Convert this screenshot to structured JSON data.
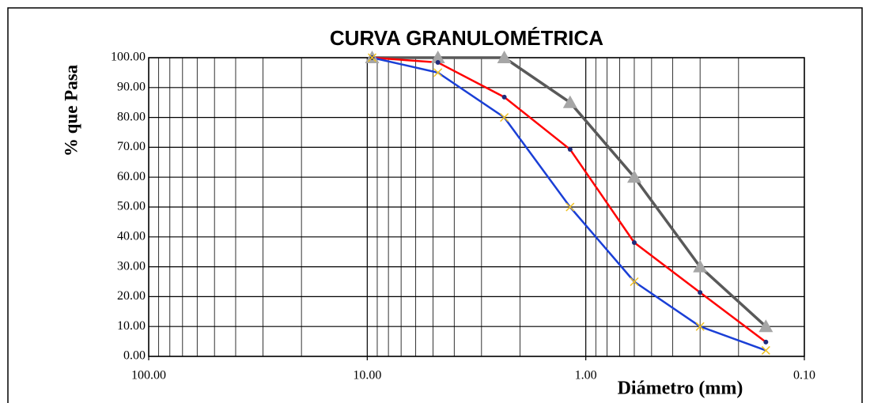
{
  "chart_data": {
    "type": "line",
    "title": "CURVA GRANULOMÉTRICA",
    "y_label": "% que Pasa",
    "x_label": "Diámetro (mm)",
    "x": [
      9.5,
      4.75,
      2.36,
      1.18,
      0.6,
      0.3,
      0.15
    ],
    "series": [
      {
        "color": "#595959",
        "marker": "triangle",
        "marker_color": "#a6a6a6",
        "values": [
          100,
          100,
          100,
          85,
          60,
          30,
          10
        ]
      },
      {
        "color": "#ff0000",
        "marker": "circle",
        "marker_color": "#1f2a7a",
        "values": [
          100,
          98.4,
          86.8,
          69.3,
          38.1,
          21.4,
          4.8
        ]
      },
      {
        "color": "#1a3fd6",
        "marker": "x",
        "marker_color": "#f0c020",
        "values": [
          100,
          95,
          80,
          50,
          25,
          10,
          2
        ]
      }
    ],
    "xlim": [
      100,
      0.1
    ],
    "x_log": true,
    "xticks": [
      {
        "value": 100,
        "label": "100.00"
      },
      {
        "value": 10,
        "label": "10.00"
      },
      {
        "value": 1,
        "label": "1.00"
      },
      {
        "value": 0.1,
        "label": "0.10"
      }
    ],
    "ylim": [
      0,
      100
    ],
    "yticks": [
      {
        "value": 0,
        "label": "0.00"
      },
      {
        "value": 10,
        "label": "10.00"
      },
      {
        "value": 20,
        "label": "20.00"
      },
      {
        "value": 30,
        "label": "30.00"
      },
      {
        "value": 40,
        "label": "40.00"
      },
      {
        "value": 50,
        "label": "50.00"
      },
      {
        "value": 60,
        "label": "60.00"
      },
      {
        "value": 70,
        "label": "70.00"
      },
      {
        "value": 80,
        "label": "80.00"
      },
      {
        "value": 90,
        "label": "90.00"
      },
      {
        "value": 100,
        "label": "100.00"
      }
    ],
    "grid": true,
    "minor_grid": true
  }
}
